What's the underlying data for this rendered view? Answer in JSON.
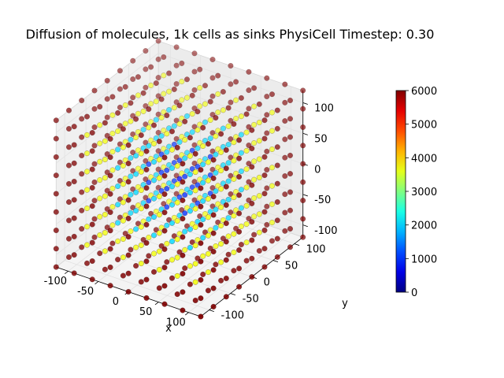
{
  "chart_data": {
    "type": "scatter",
    "projection": "3d",
    "title": "Diffusion of molecules, 1k cells as sinks PhysiCell Timestep: 0.30",
    "xlabel": "x",
    "ylabel": "y",
    "zlabel": "",
    "x_ticks": [
      -100,
      -50,
      0,
      50,
      100
    ],
    "y_ticks": [
      -100,
      -50,
      0,
      50,
      100
    ],
    "z_ticks": [
      -100,
      -50,
      0,
      50,
      100
    ],
    "xlim": [
      -120,
      120
    ],
    "ylim": [
      -120,
      120
    ],
    "zlim": [
      -120,
      120
    ],
    "grid": true,
    "colormap": "jet",
    "color_range": [
      0,
      6000
    ],
    "colorbar_ticks": [
      0,
      1000,
      2000,
      3000,
      4000,
      5000,
      6000
    ],
    "lattice": {
      "coords": [
        -120,
        -90,
        -60,
        -30,
        0,
        30,
        60,
        90,
        120
      ],
      "value_model": "concentration rises from about 700 at the center to about 6000 at the cube surface",
      "center_value": 700,
      "surface_value": 6000
    }
  }
}
